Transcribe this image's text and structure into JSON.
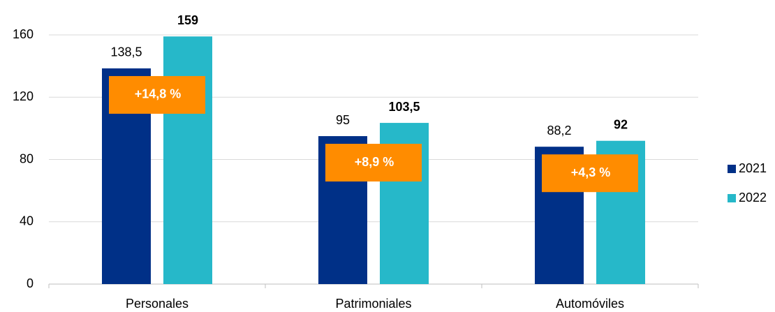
{
  "chart_data": {
    "type": "bar",
    "categories": [
      "Personales",
      "Patrimoniales",
      "Automóviles"
    ],
    "series": [
      {
        "name": "2021",
        "color": "#003087",
        "values": [
          138.5,
          95,
          88.2
        ],
        "value_labels": [
          "138,5",
          "95",
          "88,2"
        ]
      },
      {
        "name": "2022",
        "color": "#26b8c9",
        "values": [
          159,
          103.5,
          92
        ],
        "value_labels": [
          "159",
          "103,5",
          "92"
        ]
      }
    ],
    "annotations": [
      "+14,8 %",
      "+8,9 %",
      "+4,3 %"
    ],
    "annotation_color": "#ff8c00",
    "ylim": [
      0,
      160
    ],
    "yticks": [
      0,
      40,
      80,
      120,
      160
    ],
    "grid": true,
    "legend": "right"
  }
}
